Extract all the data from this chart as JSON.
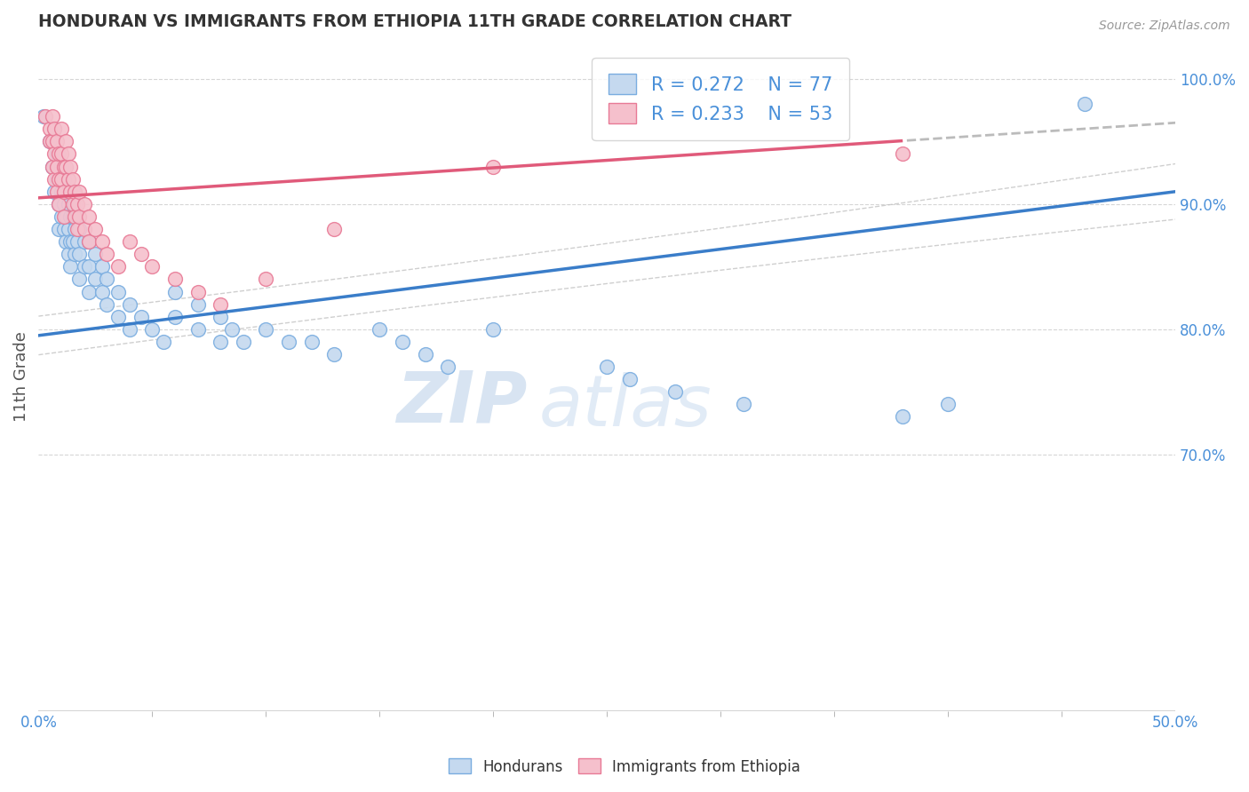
{
  "title": "HONDURAN VS IMMIGRANTS FROM ETHIOPIA 11TH GRADE CORRELATION CHART",
  "source": "Source: ZipAtlas.com",
  "ylabel_label": "11th Grade",
  "y_ticks": [
    "100.0%",
    "90.0%",
    "80.0%",
    "70.0%"
  ],
  "y_tick_vals": [
    1.0,
    0.9,
    0.8,
    0.7
  ],
  "x_lim": [
    0.0,
    0.5
  ],
  "y_lim": [
    0.495,
    1.03
  ],
  "blue_R": 0.272,
  "blue_N": 77,
  "pink_R": 0.233,
  "pink_N": 53,
  "blue_color": "#c5d9ef",
  "pink_color": "#f5c0cc",
  "blue_edge_color": "#7aade0",
  "pink_edge_color": "#e87a96",
  "blue_line_color": "#3a7dc9",
  "pink_line_color": "#e05a7a",
  "conf_color": "#bbbbbb",
  "blue_scatter": [
    [
      0.002,
      0.97
    ],
    [
      0.005,
      0.95
    ],
    [
      0.006,
      0.93
    ],
    [
      0.007,
      0.96
    ],
    [
      0.007,
      0.91
    ],
    [
      0.008,
      0.94
    ],
    [
      0.008,
      0.92
    ],
    [
      0.009,
      0.9
    ],
    [
      0.009,
      0.88
    ],
    [
      0.01,
      0.93
    ],
    [
      0.01,
      0.91
    ],
    [
      0.01,
      0.89
    ],
    [
      0.011,
      0.92
    ],
    [
      0.011,
      0.9
    ],
    [
      0.011,
      0.88
    ],
    [
      0.012,
      0.91
    ],
    [
      0.012,
      0.89
    ],
    [
      0.012,
      0.87
    ],
    [
      0.013,
      0.9
    ],
    [
      0.013,
      0.88
    ],
    [
      0.013,
      0.86
    ],
    [
      0.014,
      0.89
    ],
    [
      0.014,
      0.87
    ],
    [
      0.014,
      0.85
    ],
    [
      0.015,
      0.91
    ],
    [
      0.015,
      0.89
    ],
    [
      0.015,
      0.87
    ],
    [
      0.016,
      0.9
    ],
    [
      0.016,
      0.88
    ],
    [
      0.016,
      0.86
    ],
    [
      0.017,
      0.89
    ],
    [
      0.017,
      0.87
    ],
    [
      0.018,
      0.88
    ],
    [
      0.018,
      0.86
    ],
    [
      0.018,
      0.84
    ],
    [
      0.02,
      0.87
    ],
    [
      0.02,
      0.85
    ],
    [
      0.022,
      0.87
    ],
    [
      0.022,
      0.85
    ],
    [
      0.022,
      0.83
    ],
    [
      0.025,
      0.86
    ],
    [
      0.025,
      0.84
    ],
    [
      0.028,
      0.85
    ],
    [
      0.028,
      0.83
    ],
    [
      0.03,
      0.84
    ],
    [
      0.03,
      0.82
    ],
    [
      0.035,
      0.83
    ],
    [
      0.035,
      0.81
    ],
    [
      0.04,
      0.82
    ],
    [
      0.04,
      0.8
    ],
    [
      0.045,
      0.81
    ],
    [
      0.05,
      0.8
    ],
    [
      0.055,
      0.79
    ],
    [
      0.06,
      0.83
    ],
    [
      0.06,
      0.81
    ],
    [
      0.07,
      0.82
    ],
    [
      0.07,
      0.8
    ],
    [
      0.08,
      0.81
    ],
    [
      0.08,
      0.79
    ],
    [
      0.085,
      0.8
    ],
    [
      0.09,
      0.79
    ],
    [
      0.1,
      0.8
    ],
    [
      0.11,
      0.79
    ],
    [
      0.12,
      0.79
    ],
    [
      0.13,
      0.78
    ],
    [
      0.15,
      0.8
    ],
    [
      0.16,
      0.79
    ],
    [
      0.17,
      0.78
    ],
    [
      0.18,
      0.77
    ],
    [
      0.2,
      0.8
    ],
    [
      0.25,
      0.77
    ],
    [
      0.26,
      0.76
    ],
    [
      0.28,
      0.75
    ],
    [
      0.31,
      0.74
    ],
    [
      0.38,
      0.73
    ],
    [
      0.4,
      0.74
    ],
    [
      0.46,
      0.98
    ]
  ],
  "pink_scatter": [
    [
      0.003,
      0.97
    ],
    [
      0.005,
      0.96
    ],
    [
      0.005,
      0.95
    ],
    [
      0.006,
      0.97
    ],
    [
      0.006,
      0.95
    ],
    [
      0.006,
      0.93
    ],
    [
      0.007,
      0.96
    ],
    [
      0.007,
      0.94
    ],
    [
      0.007,
      0.92
    ],
    [
      0.008,
      0.95
    ],
    [
      0.008,
      0.93
    ],
    [
      0.008,
      0.91
    ],
    [
      0.009,
      0.94
    ],
    [
      0.009,
      0.92
    ],
    [
      0.009,
      0.9
    ],
    [
      0.01,
      0.96
    ],
    [
      0.01,
      0.94
    ],
    [
      0.01,
      0.92
    ],
    [
      0.011,
      0.93
    ],
    [
      0.011,
      0.91
    ],
    [
      0.011,
      0.89
    ],
    [
      0.012,
      0.95
    ],
    [
      0.012,
      0.93
    ],
    [
      0.013,
      0.94
    ],
    [
      0.013,
      0.92
    ],
    [
      0.014,
      0.93
    ],
    [
      0.014,
      0.91
    ],
    [
      0.015,
      0.92
    ],
    [
      0.015,
      0.9
    ],
    [
      0.016,
      0.91
    ],
    [
      0.016,
      0.89
    ],
    [
      0.017,
      0.9
    ],
    [
      0.017,
      0.88
    ],
    [
      0.018,
      0.91
    ],
    [
      0.018,
      0.89
    ],
    [
      0.02,
      0.9
    ],
    [
      0.02,
      0.88
    ],
    [
      0.022,
      0.89
    ],
    [
      0.022,
      0.87
    ],
    [
      0.025,
      0.88
    ],
    [
      0.028,
      0.87
    ],
    [
      0.03,
      0.86
    ],
    [
      0.035,
      0.85
    ],
    [
      0.04,
      0.87
    ],
    [
      0.045,
      0.86
    ],
    [
      0.05,
      0.85
    ],
    [
      0.06,
      0.84
    ],
    [
      0.07,
      0.83
    ],
    [
      0.08,
      0.82
    ],
    [
      0.1,
      0.84
    ],
    [
      0.13,
      0.88
    ],
    [
      0.2,
      0.93
    ],
    [
      0.38,
      0.94
    ]
  ],
  "watermark_zip": "ZIP",
  "watermark_atlas": "atlas",
  "background_color": "#ffffff",
  "grid_color": "#cccccc"
}
